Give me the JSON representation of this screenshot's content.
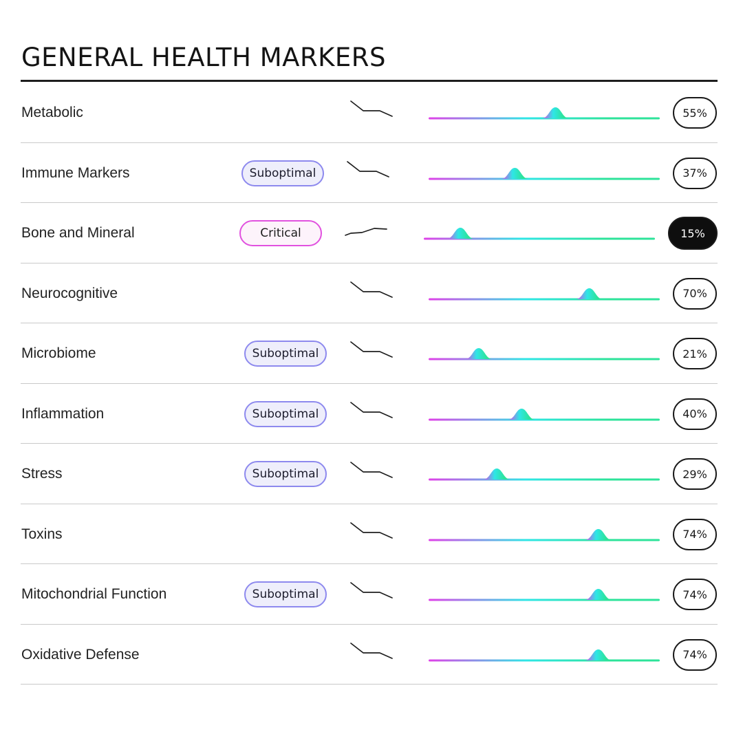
{
  "page": {
    "title": "GENERAL HEALTH MARKERS"
  },
  "colors": {
    "range_magenta": "#e040e8",
    "range_cyan": "#2ee6e6",
    "range_green": "#2de39a",
    "badge_suboptimal_border": "#8d89ee",
    "badge_critical_border": "#e151df"
  },
  "markers": [
    {
      "name": "Metabolic",
      "status": "",
      "trend": "down",
      "value": 0.55,
      "score": "55%",
      "selected": false
    },
    {
      "name": "Immune Markers",
      "status": "Suboptimal",
      "trend": "down",
      "value": 0.37,
      "score": "37%",
      "selected": false
    },
    {
      "name": "Bone and Mineral",
      "status": "Critical",
      "trend": "up",
      "value": 0.15,
      "score": "15%",
      "selected": true
    },
    {
      "name": "Neurocognitive",
      "status": "",
      "trend": "down",
      "value": 0.7,
      "score": "70%",
      "selected": false
    },
    {
      "name": "Microbiome",
      "status": "Suboptimal",
      "trend": "down",
      "value": 0.21,
      "score": "21%",
      "selected": false
    },
    {
      "name": "Inflammation",
      "status": "Suboptimal",
      "trend": "down",
      "value": 0.4,
      "score": "40%",
      "selected": false
    },
    {
      "name": "Stress",
      "status": "Suboptimal",
      "trend": "down",
      "value": 0.29,
      "score": "29%",
      "selected": false
    },
    {
      "name": "Toxins",
      "status": "",
      "trend": "down",
      "value": 0.74,
      "score": "74%",
      "selected": false
    },
    {
      "name": "Mitochondrial Function",
      "status": "Suboptimal",
      "trend": "down",
      "value": 0.74,
      "score": "74%",
      "selected": false
    },
    {
      "name": "Oxidative Defense",
      "status": "",
      "trend": "down",
      "value": 0.74,
      "score": "74%",
      "selected": false
    }
  ]
}
